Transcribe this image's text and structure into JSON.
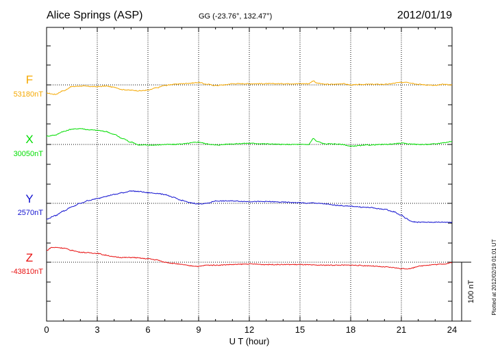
{
  "header": {
    "station": "Alice Springs (ASP)",
    "coords": "GG (-23.76°, 132.47°)",
    "date": "2012/01/19"
  },
  "side_note": "Plotted at 2012/02/19 01:01  UT",
  "scale_label": "100 nT",
  "chart_data": {
    "type": "line",
    "xlabel": "U T (hour)",
    "xlim": [
      0,
      24
    ],
    "x_ticks": [
      0,
      3,
      6,
      9,
      12,
      15,
      18,
      21,
      24
    ],
    "x_tick_labels": [
      "0",
      "3",
      "6",
      "9",
      "12",
      "15",
      "18",
      "21",
      "24"
    ],
    "scale_bar_nT": 100,
    "grid": true,
    "series": [
      {
        "name": "F",
        "baseline_label": "53180nT",
        "baseline_nT": 53180,
        "color": "#f5a800",
        "points": [
          [
            0,
            -14
          ],
          [
            0.5,
            -16
          ],
          [
            1.0,
            -10
          ],
          [
            1.5,
            -3
          ],
          [
            2.0,
            -2
          ],
          [
            3.0,
            -3
          ],
          [
            3.5,
            -2
          ],
          [
            4.0,
            -4
          ],
          [
            4.5,
            -8
          ],
          [
            5.0,
            -9
          ],
          [
            5.5,
            -10
          ],
          [
            6.0,
            -9
          ],
          [
            6.5,
            -5
          ],
          [
            7.0,
            -1
          ],
          [
            7.5,
            1
          ],
          [
            8.0,
            2
          ],
          [
            8.5,
            3
          ],
          [
            9.0,
            4
          ],
          [
            9.5,
            1
          ],
          [
            10.0,
            -1
          ],
          [
            10.5,
            0
          ],
          [
            11.0,
            2
          ],
          [
            12.0,
            2
          ],
          [
            13.0,
            2
          ],
          [
            14.0,
            2
          ],
          [
            15.0,
            2
          ],
          [
            15.5,
            2
          ],
          [
            15.8,
            7
          ],
          [
            16.0,
            3
          ],
          [
            16.5,
            1
          ],
          [
            17.0,
            1
          ],
          [
            17.5,
            2
          ],
          [
            18.0,
            0
          ],
          [
            19.0,
            1
          ],
          [
            20.0,
            1
          ],
          [
            21.0,
            4
          ],
          [
            21.3,
            5
          ],
          [
            21.6,
            3
          ],
          [
            22.0,
            1
          ],
          [
            22.5,
            0
          ],
          [
            23.0,
            -1
          ],
          [
            23.5,
            1
          ],
          [
            24.0,
            0
          ]
        ]
      },
      {
        "name": "X",
        "baseline_label": "30050nT",
        "baseline_nT": 30050,
        "color": "#00dd00",
        "points": [
          [
            0,
            14
          ],
          [
            0.5,
            16
          ],
          [
            1.0,
            22
          ],
          [
            1.5,
            26
          ],
          [
            2.0,
            27
          ],
          [
            2.5,
            25
          ],
          [
            3.0,
            24
          ],
          [
            3.5,
            22
          ],
          [
            4.0,
            17
          ],
          [
            4.5,
            10
          ],
          [
            5.0,
            4
          ],
          [
            5.5,
            -1
          ],
          [
            6.0,
            -1
          ],
          [
            6.5,
            -1
          ],
          [
            7.0,
            0
          ],
          [
            7.5,
            0
          ],
          [
            8.0,
            1
          ],
          [
            9.0,
            4
          ],
          [
            9.5,
            1
          ],
          [
            10.0,
            -1
          ],
          [
            11.0,
            1
          ],
          [
            12.0,
            2
          ],
          [
            13.0,
            1
          ],
          [
            14.0,
            0
          ],
          [
            15.0,
            0
          ],
          [
            15.5,
            0
          ],
          [
            15.8,
            10
          ],
          [
            16.0,
            5
          ],
          [
            16.5,
            1
          ],
          [
            17.0,
            1
          ],
          [
            17.5,
            0
          ],
          [
            18.0,
            -3
          ],
          [
            18.5,
            -2
          ],
          [
            19.0,
            -1
          ],
          [
            20.0,
            0
          ],
          [
            21.0,
            2
          ],
          [
            21.5,
            1
          ],
          [
            22.0,
            0
          ],
          [
            22.5,
            0
          ],
          [
            23.0,
            1
          ],
          [
            23.5,
            3
          ],
          [
            24.0,
            5
          ]
        ]
      },
      {
        "name": "Y",
        "baseline_label": "2570nT",
        "baseline_nT": 2570,
        "color": "#1010d0",
        "points": [
          [
            0,
            -27
          ],
          [
            0.5,
            -21
          ],
          [
            1.0,
            -13
          ],
          [
            1.5,
            -6
          ],
          [
            2.0,
            0
          ],
          [
            2.5,
            5
          ],
          [
            3.0,
            8
          ],
          [
            3.5,
            12
          ],
          [
            4.0,
            15
          ],
          [
            4.5,
            18
          ],
          [
            5.0,
            21
          ],
          [
            5.5,
            20
          ],
          [
            6.0,
            18
          ],
          [
            6.5,
            17
          ],
          [
            7.0,
            15
          ],
          [
            7.5,
            10
          ],
          [
            8.0,
            5
          ],
          [
            8.5,
            1
          ],
          [
            9.0,
            -1
          ],
          [
            9.5,
            0
          ],
          [
            10.0,
            4
          ],
          [
            10.5,
            4
          ],
          [
            11.0,
            4
          ],
          [
            12.0,
            3
          ],
          [
            13.0,
            3
          ],
          [
            14.0,
            2
          ],
          [
            15.0,
            1
          ],
          [
            15.5,
            0
          ],
          [
            15.8,
            1
          ],
          [
            16.0,
            0
          ],
          [
            16.5,
            -1
          ],
          [
            17.0,
            -3
          ],
          [
            18.0,
            -5
          ],
          [
            19.0,
            -7
          ],
          [
            20.0,
            -10
          ],
          [
            20.5,
            -14
          ],
          [
            21.0,
            -20
          ],
          [
            21.3,
            -26
          ],
          [
            21.6,
            -31
          ],
          [
            22.0,
            -32
          ],
          [
            22.5,
            -32
          ],
          [
            23.0,
            -32
          ],
          [
            23.5,
            -32
          ],
          [
            24.0,
            -32
          ]
        ]
      },
      {
        "name": "Z",
        "baseline_label": "-43810nT",
        "baseline_nT": -43810,
        "color": "#e81010",
        "points": [
          [
            0,
            20
          ],
          [
            0.3,
            25
          ],
          [
            0.6,
            25
          ],
          [
            1.0,
            24
          ],
          [
            1.5,
            20
          ],
          [
            2.0,
            17
          ],
          [
            2.5,
            16
          ],
          [
            3.0,
            15
          ],
          [
            3.5,
            12
          ],
          [
            4.0,
            9
          ],
          [
            4.5,
            8
          ],
          [
            5.0,
            8
          ],
          [
            6.0,
            6
          ],
          [
            6.5,
            4
          ],
          [
            7.0,
            0
          ],
          [
            7.5,
            -2
          ],
          [
            8.0,
            -4
          ],
          [
            8.5,
            -6
          ],
          [
            9.0,
            -7
          ],
          [
            9.5,
            -5
          ],
          [
            10.0,
            -5
          ],
          [
            11.0,
            -4
          ],
          [
            12.0,
            -3
          ],
          [
            13.0,
            -4
          ],
          [
            14.0,
            -4
          ],
          [
            15.0,
            -4
          ],
          [
            16.0,
            -5
          ],
          [
            17.0,
            -5
          ],
          [
            18.0,
            -5
          ],
          [
            19.0,
            -6
          ],
          [
            20.0,
            -8
          ],
          [
            20.5,
            -9
          ],
          [
            21.0,
            -11
          ],
          [
            21.5,
            -11
          ],
          [
            22.0,
            -7
          ],
          [
            22.5,
            -5
          ],
          [
            23.0,
            -4
          ],
          [
            23.5,
            -3
          ],
          [
            24.0,
            -1
          ]
        ]
      }
    ]
  }
}
